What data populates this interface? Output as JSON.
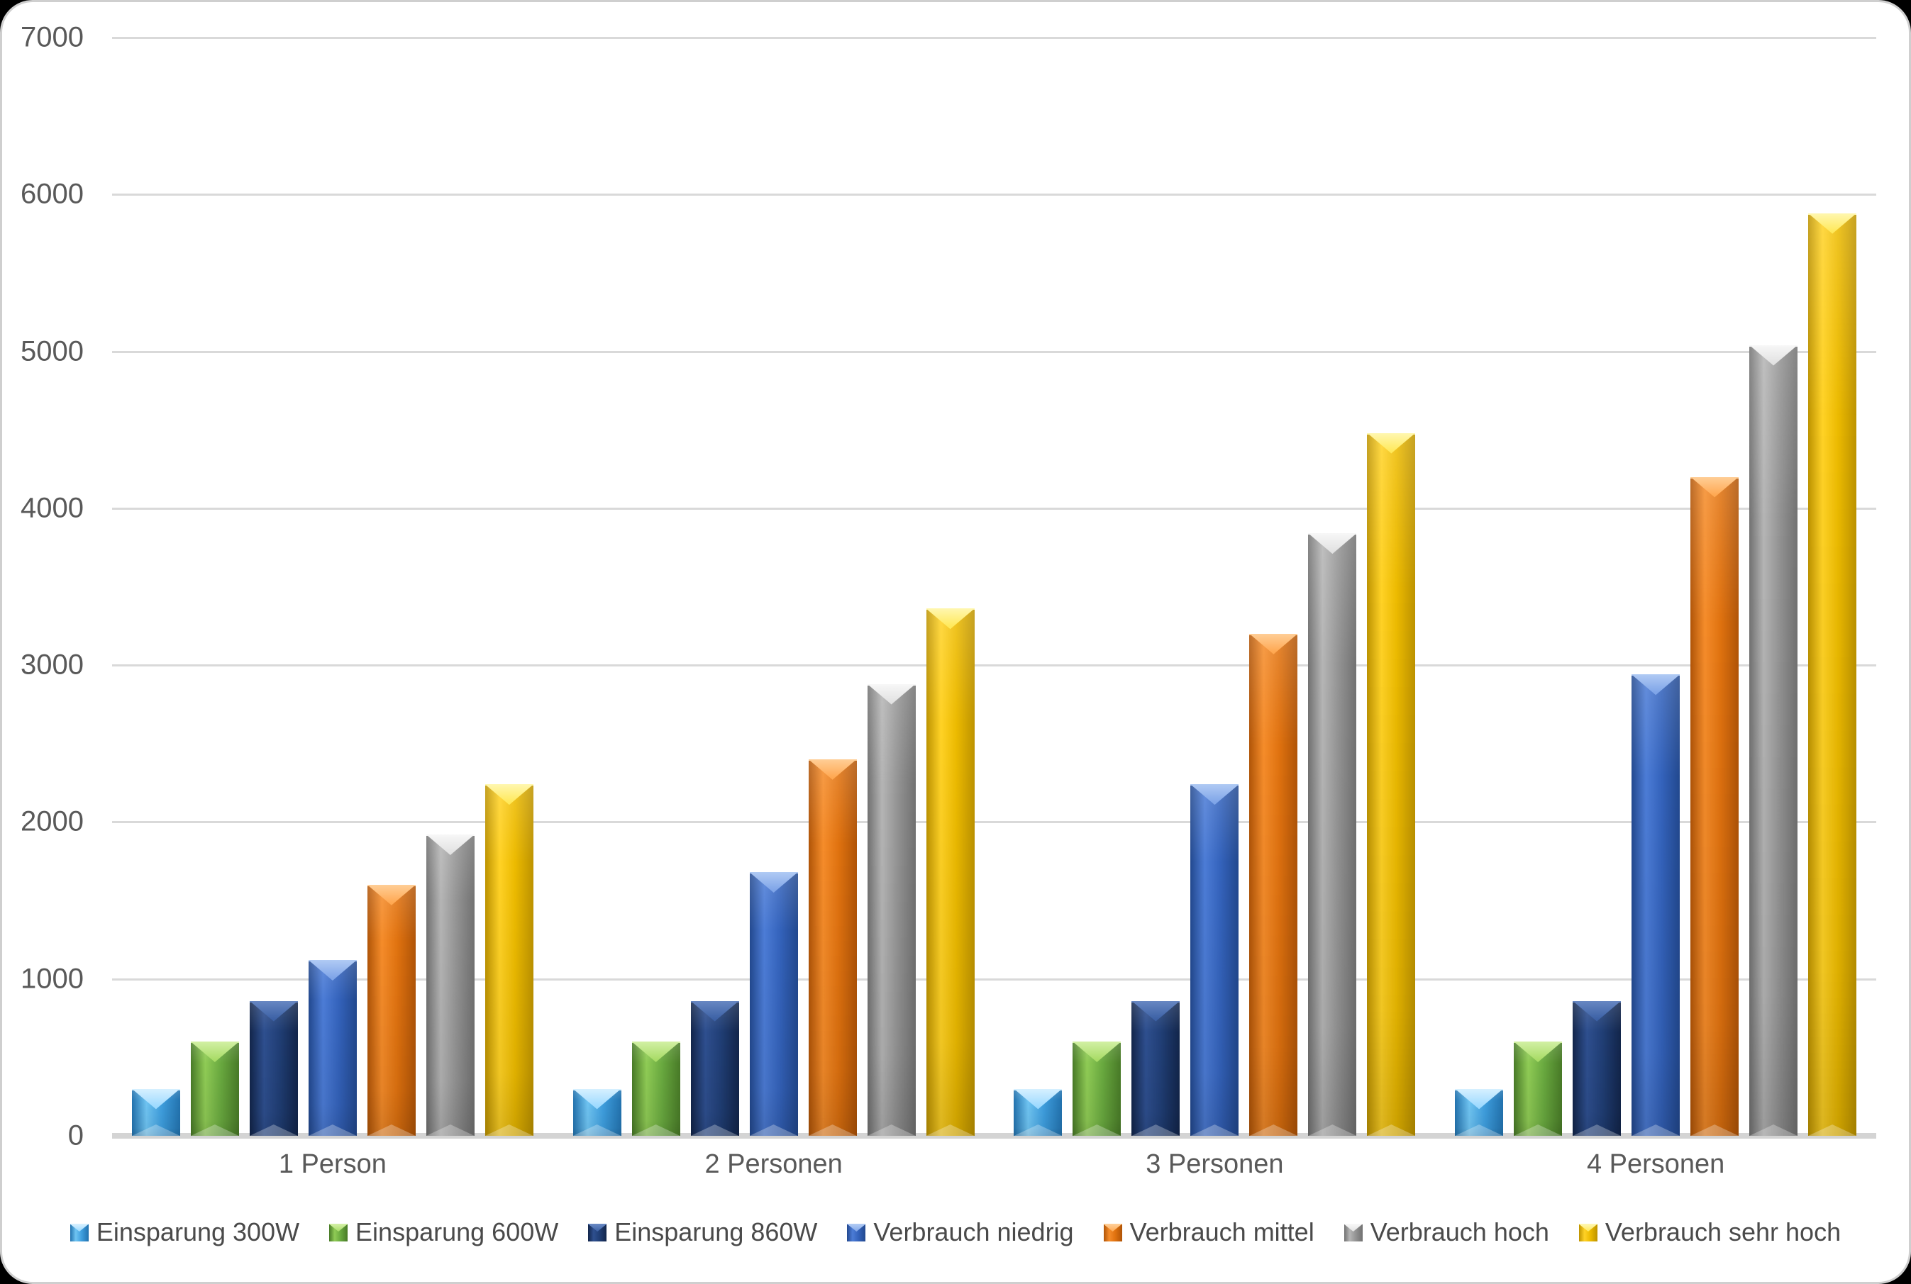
{
  "chart_data": {
    "type": "bar",
    "title": "",
    "xlabel": "",
    "ylabel": "",
    "categories": [
      "1 Person",
      "2 Personen",
      "3 Personen",
      "4 Personen"
    ],
    "series": [
      {
        "name": "Einsparung 300W",
        "values": [
          300,
          300,
          300,
          300
        ],
        "color": "#3E9EDE",
        "gradient": {
          "light": "#6FC4F2",
          "base": "#3E9EDE",
          "dark": "#2272AE",
          "cap": "#9BD9FF",
          "cap_light": "#D6F0FF"
        }
      },
      {
        "name": "Einsparung 600W",
        "values": [
          600,
          600,
          600,
          600
        ],
        "color": "#69A93F",
        "gradient": {
          "light": "#8FCB55",
          "base": "#69A93F",
          "dark": "#487A27",
          "cap": "#A9DC67",
          "cap_light": "#D2F0A4"
        }
      },
      {
        "name": "Einsparung 860W",
        "values": [
          860,
          860,
          860,
          860
        ],
        "color": "#203E75",
        "gradient": {
          "light": "#2E4F8F",
          "base": "#203E75",
          "dark": "#12254A",
          "cap": "#3C61A5",
          "cap_light": "#6787C2"
        }
      },
      {
        "name": "Verbrauch niedrig",
        "values": [
          1120,
          1680,
          2240,
          2940
        ],
        "color": "#3463BC",
        "gradient": {
          "light": "#4C7CD6",
          "base": "#3463BC",
          "dark": "#22488E",
          "cap": "#7FA5E8",
          "cap_light": "#B0CAF4"
        }
      },
      {
        "name": "Verbrauch mittel",
        "values": [
          1600,
          2400,
          3200,
          4200
        ],
        "color": "#E0720F",
        "gradient": {
          "light": "#F58C2A",
          "base": "#E0720F",
          "dark": "#B05407",
          "cap": "#FFA851",
          "cap_light": "#FFCE96"
        }
      },
      {
        "name": "Verbrauch hoch",
        "values": [
          1920,
          2880,
          3840,
          5040
        ],
        "color": "#949494",
        "gradient": {
          "light": "#B5B5B5",
          "base": "#949494",
          "dark": "#717171",
          "cap": "#E2E2E2",
          "cap_light": "#F7F7F7"
        }
      },
      {
        "name": "Verbrauch sehr hoch",
        "values": [
          2240,
          3360,
          4480,
          5880
        ],
        "color": "#ECBA00",
        "gradient": {
          "light": "#FFD226",
          "base": "#ECBA00",
          "dark": "#BD9300",
          "cap": "#FFE95A",
          "cap_light": "#FFF7B0"
        }
      }
    ],
    "y_axis": {
      "min": 0,
      "max": 7000,
      "tick_step": 1000,
      "ticks": [
        0,
        1000,
        2000,
        3000,
        4000,
        5000,
        6000,
        7000
      ]
    },
    "grid": true,
    "legend_position": "bottom",
    "layout": {
      "gridline_color": "#d9d9d9",
      "axis_line_color": "#d4d4d4",
      "tick_text_color": "#595959",
      "legend_text_color": "#4a4a4a",
      "background": "#ffffff",
      "page_background": "#000000"
    }
  }
}
